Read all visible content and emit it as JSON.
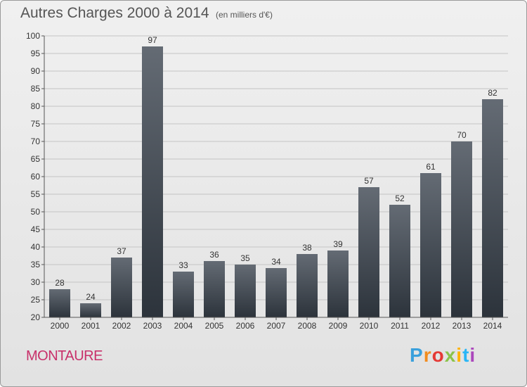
{
  "header": {
    "title": "Autres Charges 2000 à 2014",
    "subtitle": "(en milliers d'€)"
  },
  "footer": {
    "commune": "MONTAURE",
    "logo_letters": [
      "P",
      "r",
      "o",
      "x",
      "i",
      "t",
      "i"
    ],
    "logo_colors": [
      "#3aa0dc",
      "#f28c1e",
      "#e53935",
      "#8bc34a",
      "#ffb300",
      "#29b6f6",
      "#ab47bc"
    ]
  },
  "chart_data": {
    "type": "bar",
    "title": "Autres Charges 2000 à 2014",
    "subtitle": "(en milliers d'€)",
    "categories": [
      "2000",
      "2001",
      "2002",
      "2003",
      "2004",
      "2005",
      "2006",
      "2007",
      "2008",
      "2009",
      "2010",
      "2011",
      "2012",
      "2013",
      "2014"
    ],
    "values": [
      28,
      24,
      37,
      97,
      33,
      36,
      35,
      34,
      38,
      39,
      57,
      52,
      61,
      70,
      82
    ],
    "ylim": [
      20,
      100
    ],
    "yticks": [
      20,
      25,
      30,
      35,
      40,
      45,
      50,
      55,
      60,
      65,
      70,
      75,
      80,
      85,
      90,
      95,
      100
    ],
    "grid": true,
    "bar_color_top": "#646b74",
    "bar_color_bottom": "#2c333b"
  }
}
